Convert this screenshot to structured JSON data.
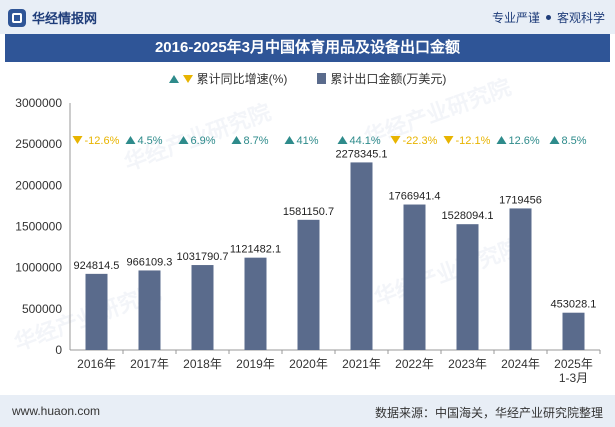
{
  "header": {
    "brand": "华经情报网",
    "tagline_left": "专业严谨",
    "tagline_right": "客观科学"
  },
  "title": "2016-2025年3月中国体育用品及设备出口金额",
  "legend": {
    "growth_label": "累计同比增速(%)",
    "amount_label": "累计出口金额(万美元)"
  },
  "chart_data": {
    "type": "bar",
    "categories": [
      "2016年",
      "2017年",
      "2018年",
      "2019年",
      "2020年",
      "2021年",
      "2022年",
      "2023年",
      "2024年",
      "2025年\n1-3月"
    ],
    "series": [
      {
        "name": "累计出口金额(万美元)",
        "values": [
          924814.5,
          966109.3,
          1031790.7,
          1121482.1,
          1581150.7,
          2278345.1,
          1766941.4,
          1528094.1,
          1719456,
          453028.1
        ],
        "labels": [
          "924814.5",
          "966109.3",
          "1031790.7",
          "1121482.1",
          "1581150.7",
          "2278345.1",
          "1766941.4",
          "1528094.1",
          "1719456",
          "453028.1"
        ],
        "color": "#5a6b8c"
      },
      {
        "name": "累计同比增速(%)",
        "values": [
          -12.6,
          4.5,
          6.9,
          8.7,
          41,
          44.1,
          -22.3,
          -12.1,
          12.6,
          8.5
        ],
        "labels": [
          "-12.6%",
          "4.5%",
          "6.9%",
          "8.7%",
          "41%",
          "44.1%",
          "-22.3%",
          "-12.1%",
          "12.6%",
          "8.5%"
        ],
        "up_color": "#2e8b8b",
        "down_color": "#e8b400"
      }
    ],
    "yticks": [
      0,
      500000,
      1000000,
      1500000,
      2000000,
      2500000,
      3000000
    ],
    "ytick_labels": [
      "0",
      "500000",
      "1000000",
      "1500000",
      "2000000",
      "2500000",
      "3000000"
    ],
    "ylim": [
      0,
      3000000
    ]
  },
  "footer": {
    "site": "www.huaon.com",
    "source": "数据来源：中国海关，华经产业研究院整理"
  },
  "watermark": "华经产业研究院"
}
